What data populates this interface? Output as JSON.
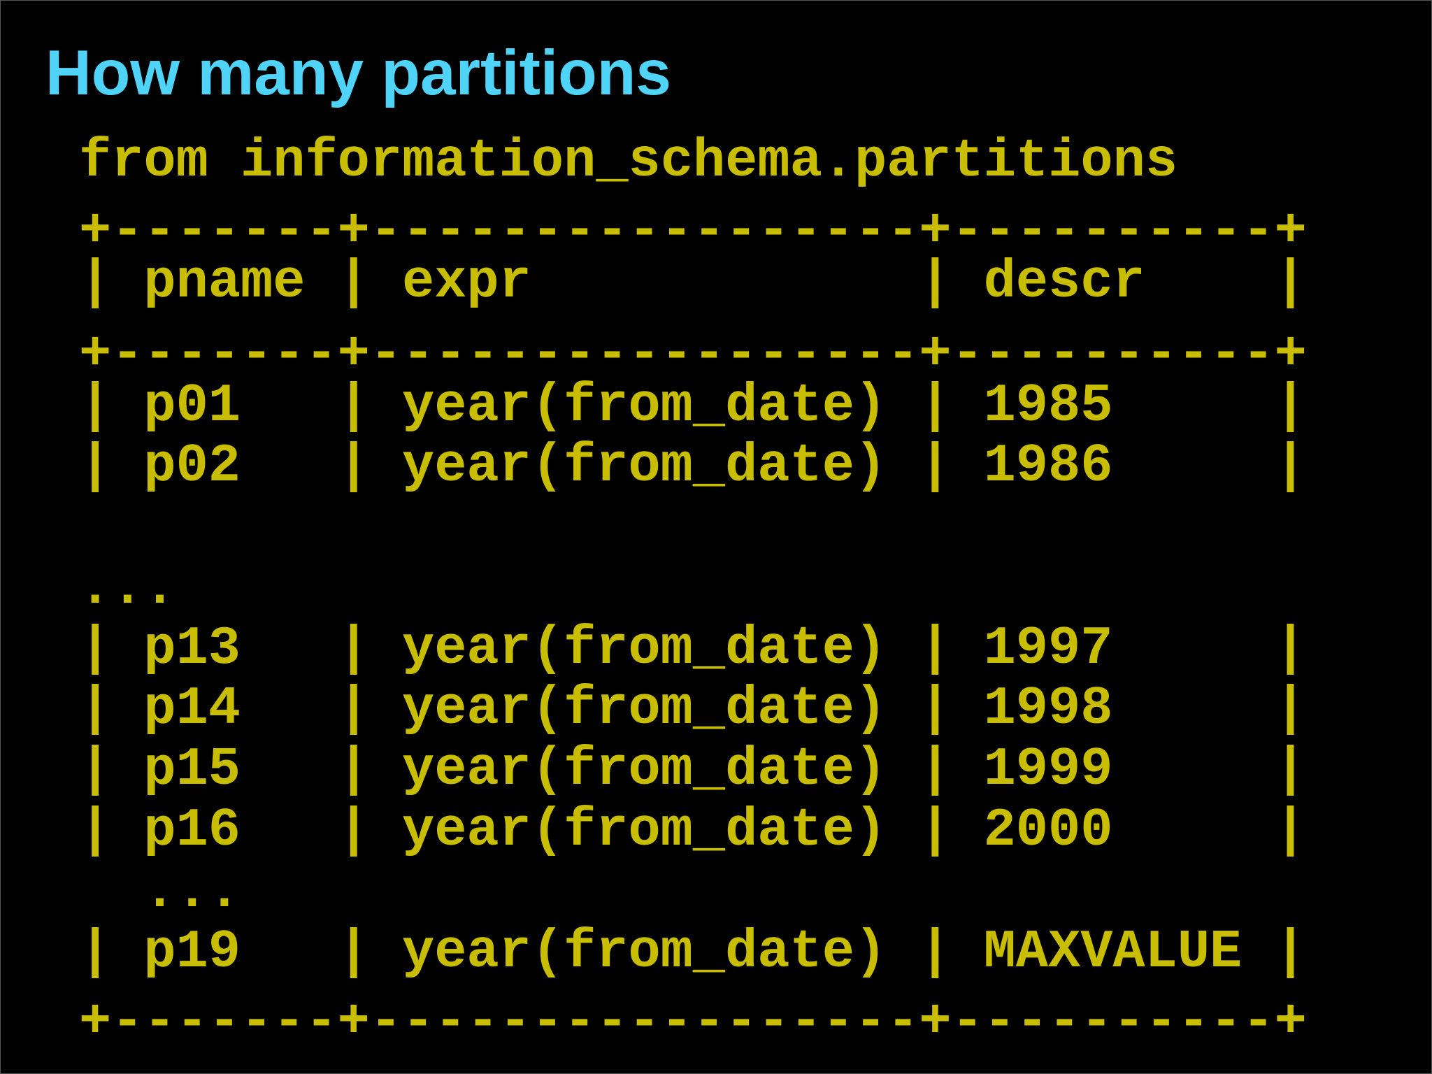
{
  "header": {
    "title": "How many partitions"
  },
  "query_line": "from information_schema.partitions",
  "table": {
    "border": "+-------+-----------------+----------+",
    "separator": "|",
    "columns": [
      "pname",
      "expr",
      "descr"
    ],
    "lines": [
      {
        "cells": [
          "p01",
          "year(from_date)",
          "1985"
        ]
      },
      {
        "cells": [
          "p02",
          "year(from_date)",
          "1986"
        ]
      },
      {
        "ellipsis": "..."
      },
      {
        "cells": [
          "p13",
          "year(from_date)",
          "1997"
        ]
      },
      {
        "cells": [
          "p14",
          "year(from_date)",
          "1998"
        ]
      },
      {
        "cells": [
          "p15",
          "year(from_date)",
          "1999"
        ]
      },
      {
        "cells": [
          "p16",
          "year(from_date)",
          "2000"
        ]
      },
      {
        "ellipsis": "..."
      },
      {
        "cells": [
          "p19",
          "year(from_date)",
          "MAXVALUE"
        ]
      }
    ]
  }
}
